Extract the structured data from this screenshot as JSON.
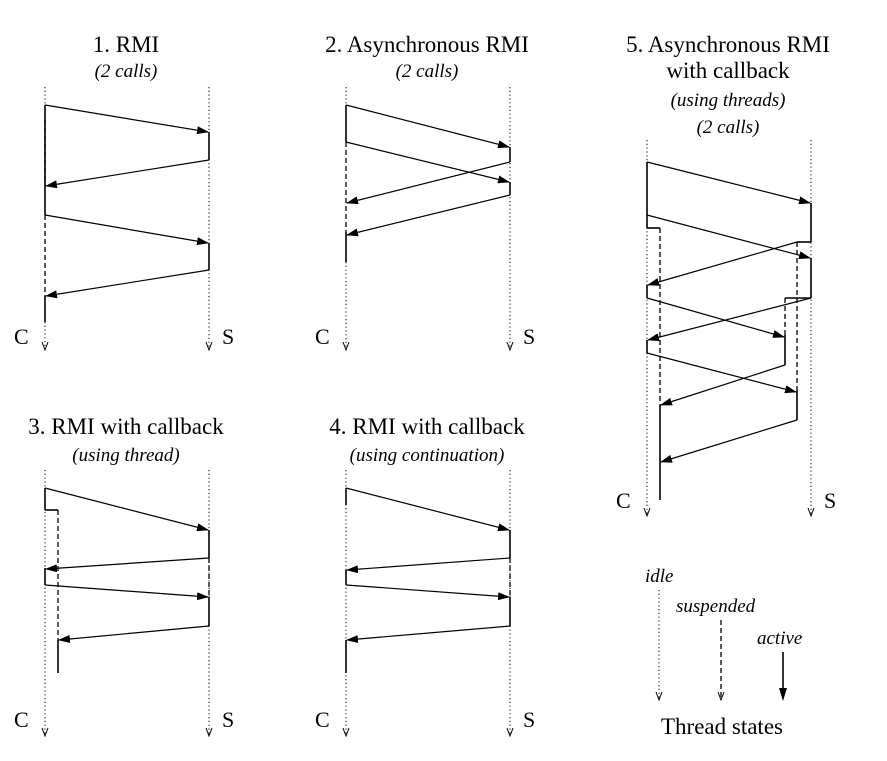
{
  "diagrams": [
    {
      "id": "rmi",
      "title_lines": [
        "1. RMI"
      ],
      "subtitle_lines": [
        "(2 calls)"
      ],
      "client_label": "C",
      "server_label": "S"
    },
    {
      "id": "async-rmi",
      "title_lines": [
        "2. Asynchronous RMI"
      ],
      "subtitle_lines": [
        "(2 calls)"
      ],
      "client_label": "C",
      "server_label": "S"
    },
    {
      "id": "rmi-callback-thread",
      "title_lines": [
        "3. RMI with callback"
      ],
      "subtitle_lines": [
        "(using thread)"
      ],
      "client_label": "C",
      "server_label": "S"
    },
    {
      "id": "rmi-callback-continuation",
      "title_lines": [
        "4. RMI with callback"
      ],
      "subtitle_lines": [
        "(using continuation)"
      ],
      "client_label": "C",
      "server_label": "S"
    },
    {
      "id": "async-rmi-callback-threads",
      "title_lines": [
        "5. Asynchronous RMI",
        "with callback"
      ],
      "subtitle_lines": [
        "(using threads)",
        "(2 calls)"
      ],
      "client_label": "C",
      "server_label": "S"
    }
  ],
  "legend": {
    "title": "Thread states",
    "idle": "idle",
    "suspended": "suspended",
    "active": "active"
  }
}
